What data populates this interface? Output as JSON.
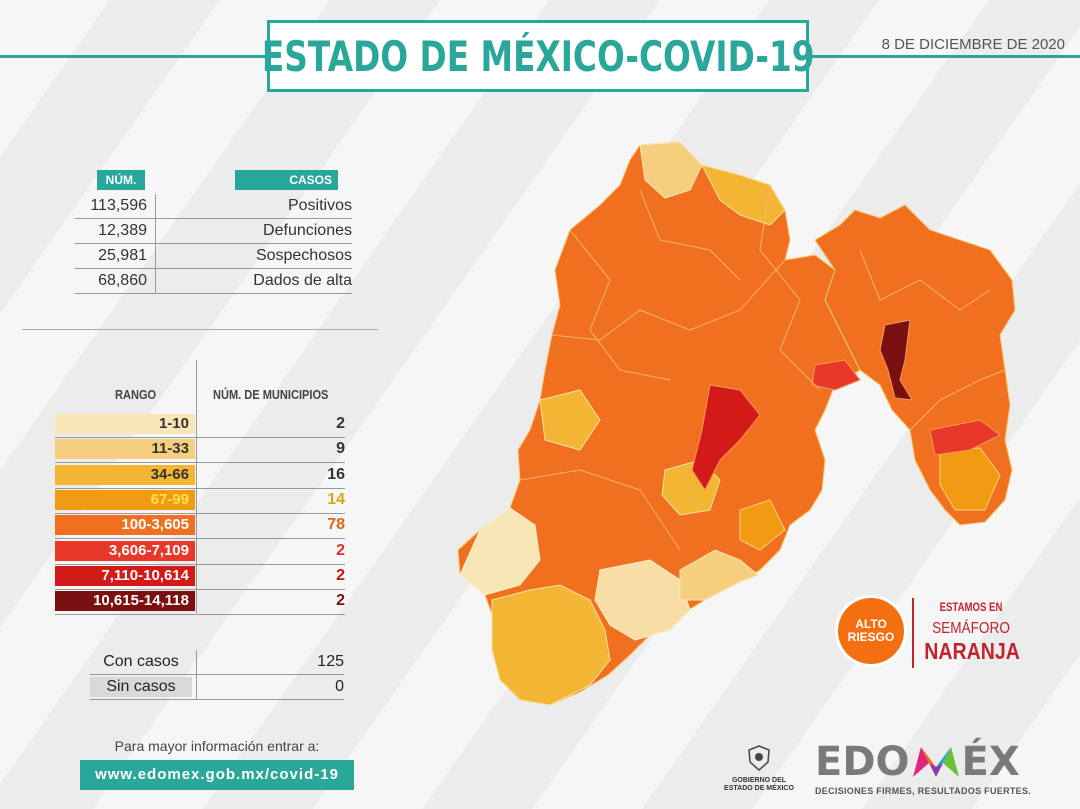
{
  "header": {
    "title": "ESTADO DE MÉXICO-COVID-19",
    "date": "8 DE DICIEMBRE DE 2020"
  },
  "stats": {
    "num_label": "NÚM.",
    "cases_label": "CASOS",
    "rows": [
      {
        "num": "113,596",
        "label": "Positivos"
      },
      {
        "num": "12,389",
        "label": "Defunciones"
      },
      {
        "num": "25,981",
        "label": "Sospechosos"
      },
      {
        "num": "68,860",
        "label": "Dados de alta"
      }
    ]
  },
  "ranges": {
    "header_range": "RANGO",
    "header_municipios": "NÚM. DE MUNICIPIOS",
    "rows": [
      {
        "range": "1-10",
        "count": "2",
        "color": "#f9e6b6",
        "text_color": "#333",
        "count_color": "#333"
      },
      {
        "range": "11-33",
        "count": "9",
        "color": "#f6cf7e",
        "text_color": "#333",
        "count_color": "#333"
      },
      {
        "range": "34-66",
        "count": "16",
        "color": "#f3b534",
        "text_color": "#333",
        "count_color": "#333"
      },
      {
        "range": "67-99",
        "count": "14",
        "color": "#f29b12",
        "text_color": "#fbe24a",
        "count_color": "#d6a90a"
      },
      {
        "range": "100-3,605",
        "count": "78",
        "color": "#f07020",
        "text_color": "#fff",
        "count_color": "#e0641a"
      },
      {
        "range": "3,606-7,109",
        "count": "2",
        "color": "#e8382a",
        "text_color": "#fff",
        "count_color": "#d8352a"
      },
      {
        "range": "7,110-10,614",
        "count": "2",
        "color": "#d41919",
        "text_color": "#fff",
        "count_color": "#c41515"
      },
      {
        "range": "10,615-14,118",
        "count": "2",
        "color": "#7a1010",
        "text_color": "#fff",
        "count_color": "#7a1010"
      }
    ]
  },
  "cases": {
    "con_label": "Con casos",
    "con_value": "125",
    "sin_label": "Sin casos",
    "sin_value": "0"
  },
  "footer": {
    "info": "Para mayor información entrar a:",
    "url": "www.edomex.gob.mx/covid-19",
    "gob_line1": "GOBIERNO DEL",
    "gob_line2": "ESTADO DE MÉXICO",
    "brand_a": "EDO",
    "brand_b": "ÉX",
    "slogan": "DECISIONES FIRMES, RESULTADOS FUERTES."
  },
  "semaforo": {
    "alto1": "ALTO",
    "alto2": "RIESGO",
    "line1": "ESTAMOS EN",
    "line2": "SEMÁFORO",
    "line3": "NARANJA"
  },
  "colors": {
    "teal": "#2aa79b",
    "orange": "#f07020",
    "red": "#c2232c"
  }
}
